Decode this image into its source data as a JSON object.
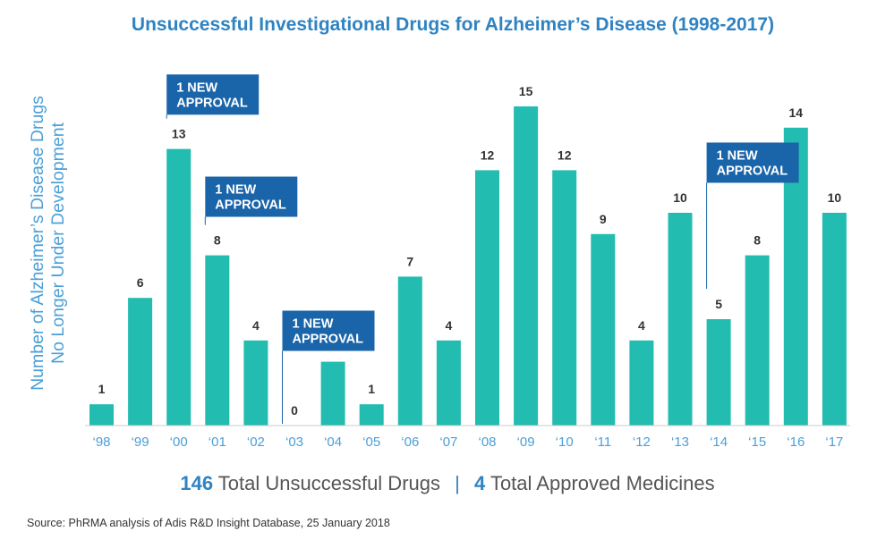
{
  "chart_data": {
    "type": "bar",
    "title": "Unsuccessful Investigational Drugs for Alzheimer’s Disease (1998-2017)",
    "ylabel": [
      "Number of Alzheimer’s Disease Drugs",
      "No Longer Under Development"
    ],
    "xlabel": "",
    "categories": [
      "‘98",
      "‘99",
      "‘00",
      "‘01",
      "‘02",
      "‘03",
      "‘04",
      "‘05",
      "‘06",
      "‘07",
      "‘08",
      "‘09",
      "‘10",
      "‘11",
      "‘12",
      "‘13",
      "‘14",
      "‘15",
      "‘16",
      "‘17"
    ],
    "values": [
      1,
      6,
      13,
      8,
      4,
      0,
      3,
      1,
      7,
      4,
      12,
      15,
      12,
      9,
      4,
      10,
      5,
      8,
      14,
      10
    ],
    "ylim": [
      0,
      15
    ],
    "grid": false,
    "annotations": [
      {
        "category": "‘00",
        "text_line1": "1 NEW",
        "text_line2": "APPROVAL",
        "level": 16.5
      },
      {
        "category": "‘01",
        "text_line1": "1 NEW",
        "text_line2": "APPROVAL",
        "level": 11.7
      },
      {
        "category": "‘03",
        "text_line1": "1 NEW",
        "text_line2": "APPROVAL",
        "level": 5.4
      },
      {
        "category": "‘14",
        "text_line1": "1 NEW",
        "text_line2": "APPROVAL",
        "level": 13.3
      }
    ],
    "colors": {
      "bar": "#23bcb0",
      "approval_box": "#1a65a9",
      "label": "#333333",
      "tick": "#4b9fd6"
    }
  },
  "summary": {
    "unsuccessful_count": "146",
    "unsuccessful_label": "Total Unsuccessful Drugs",
    "separator": "|",
    "approved_count": "4",
    "approved_label": "Total Approved Medicines"
  },
  "source": "Source: PhRMA analysis of Adis R&D Insight Database, 25 January 2018"
}
